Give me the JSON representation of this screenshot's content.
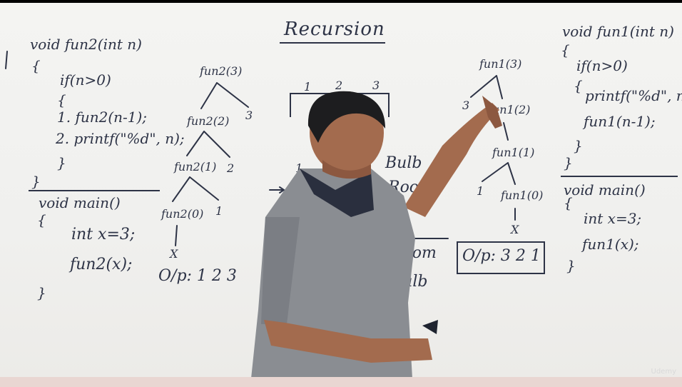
{
  "board": {
    "title": "Recursion",
    "left_code": {
      "header": "void fun2(int n)",
      "open": "{",
      "if_line": "if(n>0)",
      "if_open": "{",
      "line1": "1. fun2(n-1);",
      "line2": "2. printf(\"%d\", n);",
      "if_close": "}",
      "close": "}"
    },
    "left_main": {
      "header": "void main()",
      "open": "{",
      "decl": "int x=3;",
      "call": "fun2(x);",
      "close": "}"
    },
    "left_tree": {
      "n3": "fun2(3)",
      "n2": "fun2(2)",
      "n1": "fun2(1)",
      "n0": "fun2(0)",
      "p3": "3",
      "p2": "2",
      "p1": "1",
      "x": "X",
      "output": "O/p: 1 2 3"
    },
    "middle": {
      "nums": [
        "1",
        "2",
        "3"
      ],
      "bulb1": "Bulb",
      "room1": "Room",
      "room2": "Room",
      "bulb2": "Bulb",
      "one": "1"
    },
    "right_tree": {
      "n3": "fun1(3)",
      "n2": "fun1(2)",
      "n1": "fun1(1)",
      "n0": "fun1(0)",
      "p3": "3",
      "p1": "1",
      "x": "X",
      "output": "O/p: 3 2 1"
    },
    "right_code": {
      "header": "void fun1(int n)",
      "open": "{",
      "if_line": "if(n>0)",
      "if_open": "{",
      "line1": "printf(\"%d\", n);",
      "line2": "fun1(n-1);",
      "if_close": "}",
      "close": "}"
    },
    "right_main": {
      "header": "void main()",
      "open": "{",
      "decl": "int x=3;",
      "call": "fun1(x);",
      "close": "}"
    }
  },
  "watermark": "Udemy",
  "colors": {
    "marker": "#2d3346",
    "board": "#f2f2f0",
    "shirt": "#8a8d92"
  }
}
